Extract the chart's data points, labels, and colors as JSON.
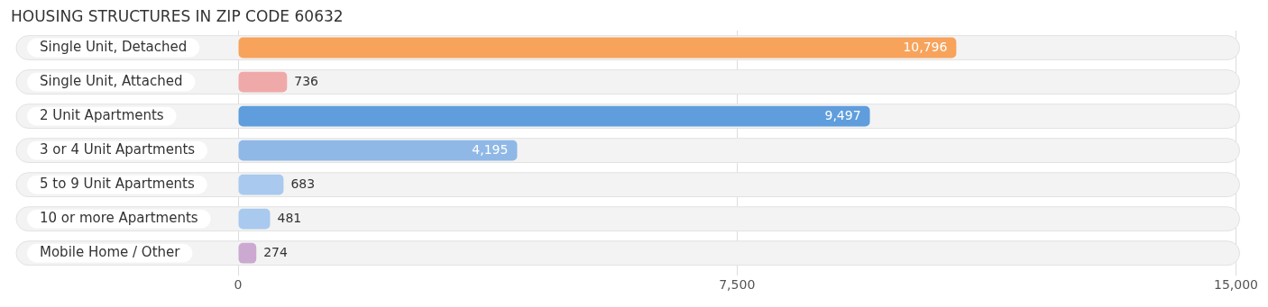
{
  "chart_data": {
    "type": "bar",
    "title": "HOUSING STRUCTURES IN ZIP CODE 60632",
    "orientation": "horizontal",
    "categories": [
      "Single Unit, Detached",
      "Single Unit, Attached",
      "2 Unit Apartments",
      "3 or 4 Unit Apartments",
      "5 to 9 Unit Apartments",
      "10 or more Apartments",
      "Mobile Home / Other"
    ],
    "values": [
      10796,
      736,
      9497,
      4195,
      683,
      481,
      274
    ],
    "colors": [
      "#f7a35c",
      "#f0a9a9",
      "#5f9ddd",
      "#8fb8e6",
      "#a9c9ee",
      "#a9c9ee",
      "#cca9d1"
    ],
    "xlim": [
      0,
      15000
    ],
    "xticks": [
      {
        "value": 0,
        "label": "0"
      },
      {
        "value": 7500,
        "label": "7,500"
      },
      {
        "value": 15000,
        "label": "15,000"
      }
    ],
    "value_labels": [
      "10,796",
      "736",
      "9,497",
      "4,195",
      "683",
      "481",
      "274"
    ],
    "grid": "x",
    "legend": false
  }
}
